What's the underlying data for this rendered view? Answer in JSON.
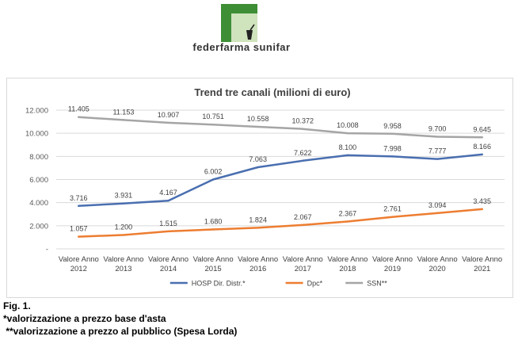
{
  "logo": {
    "brand_text": "federfarma sunifar",
    "colors": {
      "green_dark": "#3e8e35",
      "green_light": "#cfe3bc"
    }
  },
  "caption": {
    "fig_label": "Fig. 1.",
    "note1": "*valorizzazione a prezzo base d'asta",
    "note2": " **valorizzazione a prezzo al pubblico (Spesa Lorda)"
  },
  "chart_data": {
    "type": "line",
    "title": "Trend tre canali (milioni di euro)",
    "categories": [
      [
        "Valore Anno",
        "2012"
      ],
      [
        "Valore Anno",
        "2013"
      ],
      [
        "Valore Anno",
        "2014"
      ],
      [
        "Valore Anno",
        "2015"
      ],
      [
        "Valore Anno",
        "2016"
      ],
      [
        "Valore Anno",
        "2017"
      ],
      [
        "Valore Anno",
        "2018"
      ],
      [
        "Valore Anno",
        "2019"
      ],
      [
        "Valore Anno",
        "2020"
      ],
      [
        "Valore Anno",
        "2021"
      ]
    ],
    "y_ticks": [
      {
        "value": 0,
        "label": "-"
      },
      {
        "value": 2000,
        "label": "2.000"
      },
      {
        "value": 4000,
        "label": "4.000"
      },
      {
        "value": 6000,
        "label": "6.000"
      },
      {
        "value": 8000,
        "label": "8.000"
      },
      {
        "value": 10000,
        "label": "10.000"
      },
      {
        "value": 12000,
        "label": "12.000"
      }
    ],
    "ylim": [
      0,
      12000
    ],
    "grid": true,
    "legend_position": "bottom",
    "series": [
      {
        "name": "HOSP Dir. Distr.*",
        "color": "#4a6fb0",
        "values": [
          3716,
          3931,
          4167,
          6002,
          7063,
          7622,
          8100,
          7998,
          7777,
          8166
        ],
        "labels": [
          "3.716",
          "3.931",
          "4.167",
          "6.002",
          "7.063",
          "7.622",
          "8.100",
          "7.998",
          "7.777",
          "8.166"
        ]
      },
      {
        "name": "Dpc*",
        "color": "#ed7d31",
        "values": [
          1057,
          1200,
          1515,
          1680,
          1824,
          2067,
          2367,
          2761,
          3094,
          3435
        ],
        "labels": [
          "1.057",
          "1.200",
          "1.515",
          "1.680",
          "1.824",
          "2.067",
          "2.367",
          "2.761",
          "3.094",
          "3.435"
        ]
      },
      {
        "name": "SSN**",
        "color": "#a5a5a5",
        "values": [
          11405,
          11153,
          10907,
          10751,
          10558,
          10372,
          10008,
          9958,
          9700,
          9645
        ],
        "labels": [
          "11.405",
          "11.153",
          "10.907",
          "10.751",
          "10.558",
          "10.372",
          "10.008",
          "9.958",
          "9.700",
          "9.645"
        ]
      }
    ]
  }
}
